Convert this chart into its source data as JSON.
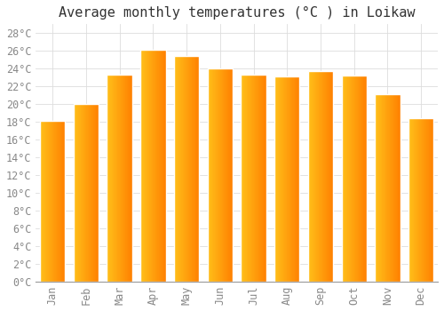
{
  "title": "Average monthly temperatures (°C ) in Loikaw",
  "months": [
    "Jan",
    "Feb",
    "Mar",
    "Apr",
    "May",
    "Jun",
    "Jul",
    "Aug",
    "Sep",
    "Oct",
    "Nov",
    "Dec"
  ],
  "values": [
    18.1,
    20.0,
    23.3,
    26.1,
    25.4,
    24.0,
    23.3,
    23.1,
    23.7,
    23.2,
    21.1,
    18.4
  ],
  "bar_color_left": "#FFD050",
  "bar_color_right": "#FFA000",
  "ylim": [
    0,
    29
  ],
  "yticks": [
    0,
    2,
    4,
    6,
    8,
    10,
    12,
    14,
    16,
    18,
    20,
    22,
    24,
    26,
    28
  ],
  "ytick_labels": [
    "0°C",
    "2°C",
    "4°C",
    "6°C",
    "8°C",
    "10°C",
    "12°C",
    "14°C",
    "16°C",
    "18°C",
    "20°C",
    "22°C",
    "24°C",
    "26°C",
    "28°C"
  ],
  "background_color": "#FFFFFF",
  "plot_bg_color": "#FFFFFF",
  "grid_color": "#DDDDDD",
  "title_fontsize": 11,
  "tick_fontsize": 8.5,
  "tick_color": "#888888",
  "font_family": "monospace"
}
